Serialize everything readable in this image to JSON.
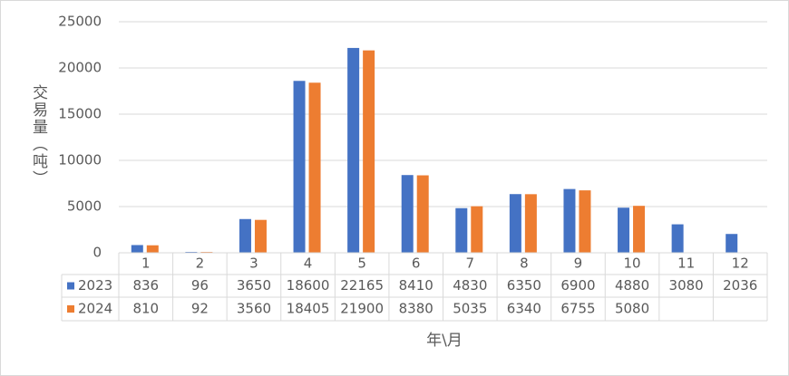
{
  "chart_data": {
    "type": "bar",
    "y_axis_title": "交易量（吨）",
    "x_axis_title": "年\\月",
    "categories": [
      "1",
      "2",
      "3",
      "4",
      "5",
      "6",
      "7",
      "8",
      "9",
      "10",
      "11",
      "12"
    ],
    "series": [
      {
        "name": "2023",
        "color": "#4472c4",
        "values": [
          836,
          96,
          3650,
          18600,
          22165,
          8410,
          4830,
          6350,
          6900,
          4880,
          3080,
          2036
        ]
      },
      {
        "name": "2024",
        "color": "#ed7d31",
        "values": [
          810,
          92,
          3560,
          18405,
          21900,
          8380,
          5035,
          6340,
          6755,
          5080,
          null,
          null
        ]
      }
    ],
    "ylim": [
      0,
      25000
    ],
    "yticks": [
      0,
      5000,
      10000,
      15000,
      20000,
      25000
    ],
    "grid": true,
    "data_table": true
  }
}
